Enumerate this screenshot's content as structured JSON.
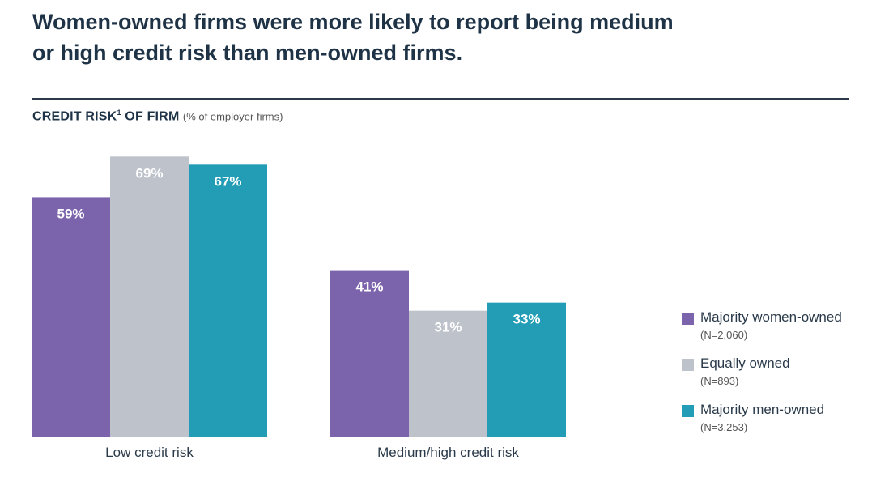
{
  "header": {
    "title_line1": "Women-owned firms were more likely to report being medium",
    "title_line2": "or high credit risk than men-owned firms.",
    "subtitle_main": "CREDIT RISK",
    "subtitle_sup": "1",
    "subtitle_rest": " OF FIRM",
    "subtitle_unit": "(% of employer firms)"
  },
  "colors": {
    "women": "#7b64ab",
    "equal": "#bdc2cb",
    "men": "#229db5"
  },
  "chart_data": {
    "type": "bar",
    "categories": [
      "Low credit risk",
      "Medium/high credit risk"
    ],
    "series": [
      {
        "name": "Majority women-owned",
        "n": "(N=2,060)",
        "values": [
          59,
          41
        ],
        "labels": [
          "59%",
          "41%"
        ]
      },
      {
        "name": "Equally owned",
        "n": "(N=893)",
        "values": [
          69,
          31
        ],
        "labels": [
          "69%",
          "31%"
        ]
      },
      {
        "name": "Majority men-owned",
        "n": "(N=3,253)",
        "values": [
          67,
          33
        ],
        "labels": [
          "67%",
          "33%"
        ]
      }
    ],
    "ylim": [
      0,
      100
    ],
    "grid": false,
    "legend": "right"
  }
}
